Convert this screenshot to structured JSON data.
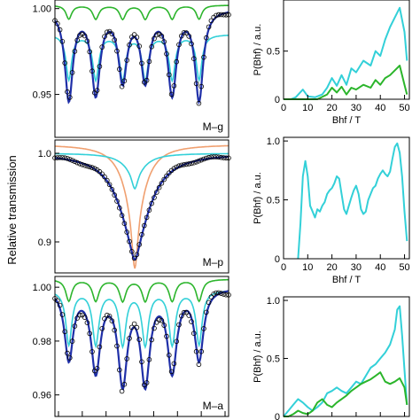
{
  "figure": {
    "ylabel": "Relative transmission",
    "colors": {
      "data": "#000000",
      "fit": "#1f2fa8",
      "comp_green": "#2db52d",
      "comp_cyan": "#33d0d8",
      "comp_orange": "#f0a070",
      "dist_cyan": "#33d0d8",
      "dist_green": "#2bb52b"
    }
  },
  "chart_data": [
    {
      "type": "scatter",
      "panel": "spectrum",
      "label": "M–g",
      "yticks": [
        0.95,
        1.0
      ],
      "yticklabels": [
        "0.95",
        "1.00"
      ],
      "ylim": [
        0.925,
        1.005
      ],
      "dips": [
        {
          "c": 0.08,
          "d": 0.052,
          "w": 0.028
        },
        {
          "c": 0.235,
          "d": 0.048,
          "w": 0.03
        },
        {
          "c": 0.39,
          "d": 0.04,
          "w": 0.03
        },
        {
          "c": 0.52,
          "d": 0.04,
          "w": 0.03
        },
        {
          "c": 0.675,
          "d": 0.048,
          "w": 0.03
        },
        {
          "c": 0.83,
          "d": 0.052,
          "w": 0.028
        }
      ],
      "components": [
        {
          "name": "",
          "color": "#2db52d",
          "base": 1.002,
          "depth": 0.008
        },
        {
          "name": "",
          "color": "#33d0d8",
          "base": 0.985,
          "depth": 0.026
        }
      ]
    },
    {
      "type": "scatter",
      "panel": "spectrum",
      "label": "M–p",
      "yticks": [
        0.9,
        1.0
      ],
      "yticklabels": [
        "0.9",
        "1.0"
      ],
      "ylim": [
        0.865,
        1.015
      ],
      "dips": [
        {
          "c": 0.46,
          "d": 0.095,
          "w": 0.11
        },
        {
          "c": 0.46,
          "d": 0.025,
          "w": 0.03
        }
      ],
      "components": [
        {
          "name": "",
          "color": "#f0a070",
          "base": 1.01,
          "depth": 0.07
        },
        {
          "name": "",
          "color": "#33d0d8",
          "base": 1.0,
          "depth": 0.02
        }
      ]
    },
    {
      "type": "scatter",
      "panel": "spectrum",
      "label": "M–a",
      "yticks": [
        0.96,
        0.98,
        1.0
      ],
      "yticklabels": [
        "0.96",
        "0.98",
        "1.00"
      ],
      "ylim": [
        0.952,
        1.004
      ],
      "dips": [
        {
          "c": 0.08,
          "d": 0.026,
          "w": 0.03
        },
        {
          "c": 0.235,
          "d": 0.03,
          "w": 0.032
        },
        {
          "c": 0.39,
          "d": 0.034,
          "w": 0.032
        },
        {
          "c": 0.52,
          "d": 0.034,
          "w": 0.032
        },
        {
          "c": 0.675,
          "d": 0.03,
          "w": 0.032
        },
        {
          "c": 0.83,
          "d": 0.026,
          "w": 0.03
        }
      ],
      "components": [
        {
          "name": "",
          "color": "#2db52d",
          "base": 1.003,
          "depth": 0.008
        },
        {
          "name": "",
          "color": "#33d0d8",
          "base": 0.999,
          "depth": 0.02
        }
      ]
    },
    {
      "type": "line",
      "panel": "distribution",
      "ylabel": "P(Bhf) / a.u.",
      "xlabel": "Bhf / T",
      "xlim": [
        0,
        52
      ],
      "ylim": [
        0,
        1.0
      ],
      "xticks": [
        0,
        10,
        20,
        30,
        40,
        50
      ],
      "xticklabels": [
        "0",
        "10",
        "20",
        "30",
        "40",
        "50"
      ],
      "yticks": [
        0,
        0.5
      ],
      "yticklabels": [
        "0",
        "0.5"
      ],
      "series": [
        {
          "color": "#33d0d8",
          "x": [
            0,
            3,
            5,
            8,
            10,
            13,
            16,
            18,
            20,
            22,
            24,
            26,
            28,
            30,
            33,
            36,
            38,
            40,
            42,
            44,
            46,
            48,
            50,
            51
          ],
          "y": [
            0,
            0,
            0.02,
            0.1,
            0.03,
            0.02,
            0.05,
            0.12,
            0.22,
            0.14,
            0.25,
            0.15,
            0.32,
            0.28,
            0.4,
            0.35,
            0.5,
            0.45,
            0.62,
            0.75,
            0.85,
            0.95,
            0.7,
            0.4
          ]
        },
        {
          "color": "#2bb52b",
          "x": [
            0,
            3,
            6,
            10,
            14,
            18,
            20,
            22,
            24,
            26,
            28,
            30,
            33,
            36,
            38,
            40,
            42,
            44,
            46,
            48,
            50,
            51
          ],
          "y": [
            0,
            0,
            0,
            0,
            0,
            0.05,
            0.12,
            0.07,
            0.13,
            0.05,
            0.12,
            0.1,
            0.15,
            0.12,
            0.2,
            0.15,
            0.22,
            0.25,
            0.3,
            0.35,
            0.15,
            0.05
          ]
        }
      ]
    },
    {
      "type": "line",
      "panel": "distribution",
      "ylabel": "P(Bhf) / a.u.",
      "xlabel": "Bhf / T",
      "xlim": [
        0,
        52
      ],
      "ylim": [
        0,
        1.0
      ],
      "xticks": [
        0,
        10,
        20,
        30,
        40,
        50
      ],
      "xticklabels": [
        "0",
        "10",
        "20",
        "30",
        "40",
        "50"
      ],
      "yticks": [
        0,
        0.5,
        1.0
      ],
      "yticklabels": [
        "0",
        "0.5",
        "1.0"
      ],
      "series": [
        {
          "color": "#33d0d8",
          "x": [
            6,
            7,
            8,
            9,
            10,
            11,
            12,
            13,
            14,
            15,
            16,
            17,
            18,
            19,
            20,
            21,
            22,
            23,
            24,
            25,
            26,
            27,
            28,
            29,
            30,
            31,
            32,
            33,
            34,
            35,
            36,
            37,
            38,
            39,
            40,
            41,
            42,
            43,
            44,
            45,
            46,
            47,
            48,
            49,
            50,
            51
          ],
          "y": [
            0,
            0.3,
            0.7,
            0.83,
            0.7,
            0.45,
            0.4,
            0.35,
            0.42,
            0.4,
            0.45,
            0.48,
            0.55,
            0.58,
            0.6,
            0.64,
            0.7,
            0.68,
            0.55,
            0.42,
            0.38,
            0.45,
            0.52,
            0.58,
            0.62,
            0.55,
            0.42,
            0.38,
            0.4,
            0.5,
            0.55,
            0.6,
            0.62,
            0.68,
            0.72,
            0.75,
            0.72,
            0.7,
            0.74,
            0.85,
            0.95,
            0.98,
            0.9,
            0.7,
            0.4,
            0.15
          ]
        }
      ]
    },
    {
      "type": "line",
      "panel": "distribution",
      "ylabel": "P(Bhf) / a.u.",
      "xlabel": "",
      "xlim": [
        0,
        52
      ],
      "ylim": [
        0,
        1.0
      ],
      "xticks": [
        0,
        10,
        20,
        30,
        40,
        50
      ],
      "xticklabels": [
        "",
        "",
        "",
        "",
        "",
        ""
      ],
      "yticks": [
        0,
        0.5,
        1.0
      ],
      "yticklabels": [
        "0",
        "0.5",
        "1.0"
      ],
      "series": [
        {
          "color": "#33d0d8",
          "x": [
            0,
            2,
            4,
            6,
            8,
            10,
            12,
            14,
            16,
            18,
            20,
            22,
            24,
            26,
            28,
            30,
            32,
            34,
            36,
            38,
            40,
            42,
            44,
            46,
            47,
            48,
            49,
            50,
            51
          ],
          "y": [
            0,
            0.05,
            0.1,
            0.15,
            0.12,
            0.08,
            0.05,
            0.08,
            0.12,
            0.2,
            0.22,
            0.25,
            0.22,
            0.2,
            0.25,
            0.3,
            0.28,
            0.35,
            0.42,
            0.45,
            0.5,
            0.55,
            0.62,
            0.75,
            0.92,
            0.95,
            0.7,
            0.4,
            0.1
          ]
        },
        {
          "color": "#2bb52b",
          "x": [
            0,
            2,
            4,
            6,
            8,
            10,
            12,
            14,
            16,
            18,
            20,
            22,
            24,
            26,
            28,
            30,
            32,
            34,
            36,
            38,
            40,
            42,
            44,
            46,
            48,
            50,
            51
          ],
          "y": [
            0,
            0,
            0.02,
            0.05,
            0.03,
            0.02,
            0.05,
            0.12,
            0.15,
            0.1,
            0.08,
            0.12,
            0.15,
            0.18,
            0.22,
            0.25,
            0.28,
            0.3,
            0.32,
            0.35,
            0.38,
            0.3,
            0.28,
            0.3,
            0.33,
            0.25,
            0.1
          ]
        }
      ]
    }
  ]
}
